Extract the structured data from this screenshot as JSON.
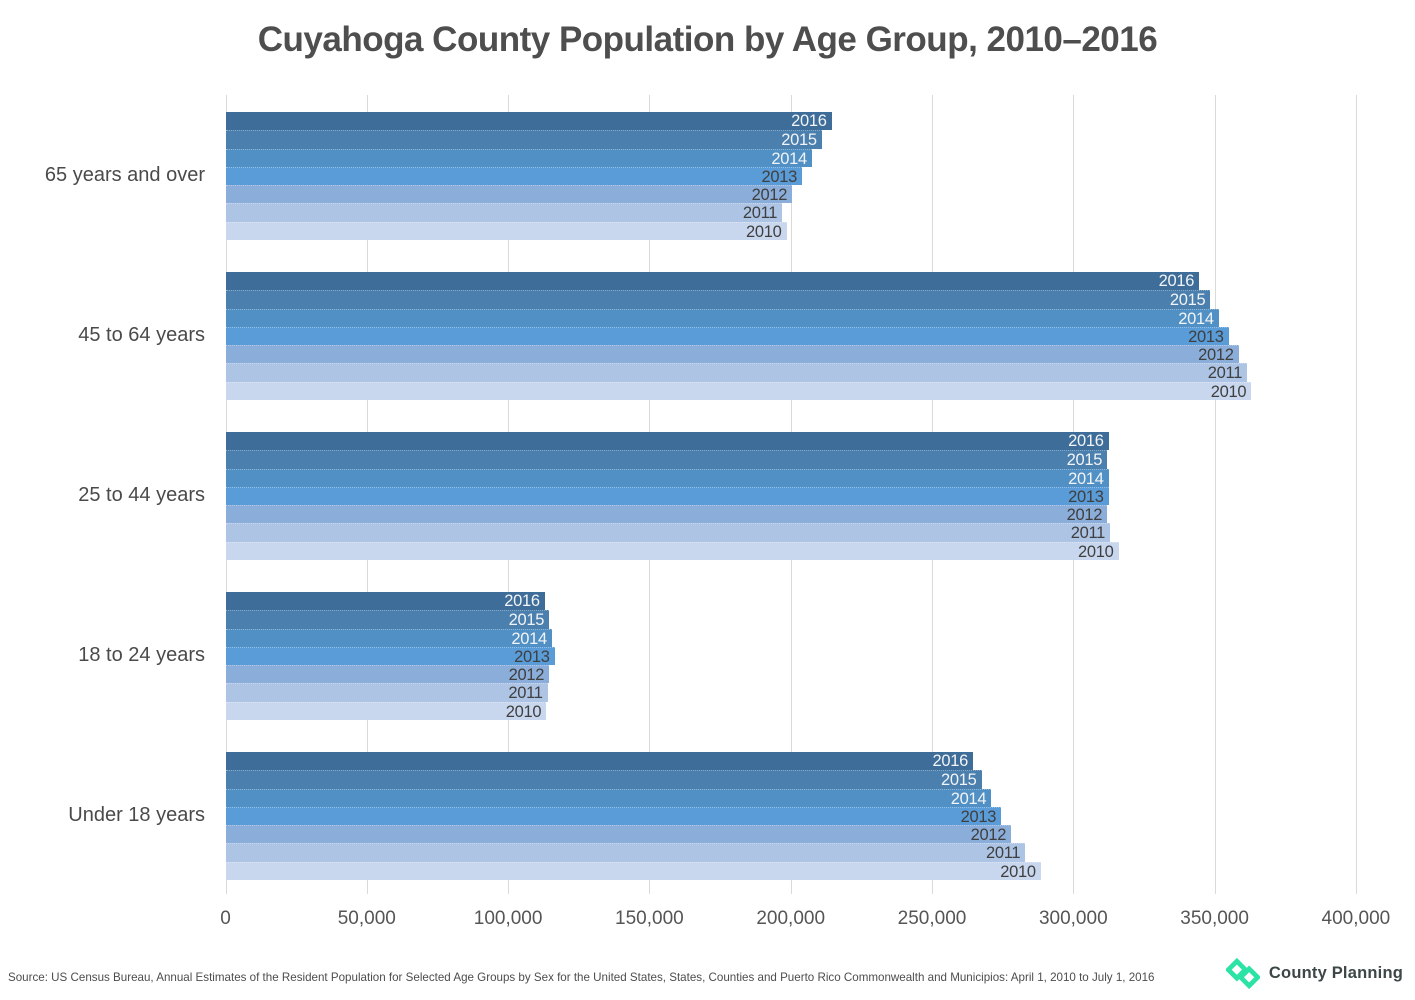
{
  "title": "Cuyahoga County Population by Age Group, 2010–2016",
  "footer": {
    "source": "Source: US Census Bureau, Annual Estimates of the Resident Population for Selected Age Groups by Sex for the United States, States, Counties and Puerto Rico Commonwealth and Municipios: April 1, 2010 to July 1, 2016",
    "logo_text": "County Planning",
    "logo_color": "#2be3a4"
  },
  "chart_data": {
    "type": "bar",
    "orientation": "horizontal",
    "title": "Cuyahoga County Population by Age Group, 2010–2016",
    "xlabel": "",
    "ylabel": "",
    "grid": true,
    "xlim": [
      0,
      400000
    ],
    "x_axis": {
      "min": 0,
      "max": 400000,
      "tick_step": 50000,
      "tick_labels": [
        "0",
        "50,000",
        "100,000",
        "150,000",
        "200,000",
        "250,000",
        "300,000",
        "350,000",
        "400,000"
      ]
    },
    "categories": [
      "65 years and over",
      "45 to 64 years",
      "25 to 44 years",
      "18 to 24 years",
      "Under 18 years"
    ],
    "bar_order_note": "Within each age group, bars run 2016 (top, darkest) to 2010 (bottom, lightest); year labels sit inside the right end of each bar",
    "series": [
      {
        "name": "2016",
        "color": "#3f6d99",
        "label_color": "#f2f4f7",
        "values": [
          214500,
          344500,
          312500,
          113000,
          264500
        ]
      },
      {
        "name": "2015",
        "color": "#4a7fae",
        "label_color": "#f2f4f7",
        "values": [
          211000,
          348500,
          312000,
          114500,
          267500
        ]
      },
      {
        "name": "2014",
        "color": "#5190c4",
        "label_color": "#f2f4f7",
        "values": [
          207500,
          351500,
          312500,
          115500,
          271000
        ]
      },
      {
        "name": "2013",
        "color": "#5a9cd8",
        "label_color": "#3f3f3f",
        "values": [
          204000,
          355000,
          312500,
          116500,
          274500
        ]
      },
      {
        "name": "2012",
        "color": "#8badda",
        "label_color": "#3f3f3f",
        "values": [
          200500,
          358500,
          312000,
          114500,
          278000
        ]
      },
      {
        "name": "2011",
        "color": "#adc4e5",
        "label_color": "#3f3f3f",
        "values": [
          197000,
          361500,
          313000,
          114000,
          283000
        ]
      },
      {
        "name": "2010",
        "color": "#c8d7ee",
        "label_color": "#3f3f3f",
        "values": [
          198500,
          363000,
          316000,
          113500,
          288500
        ]
      }
    ]
  }
}
